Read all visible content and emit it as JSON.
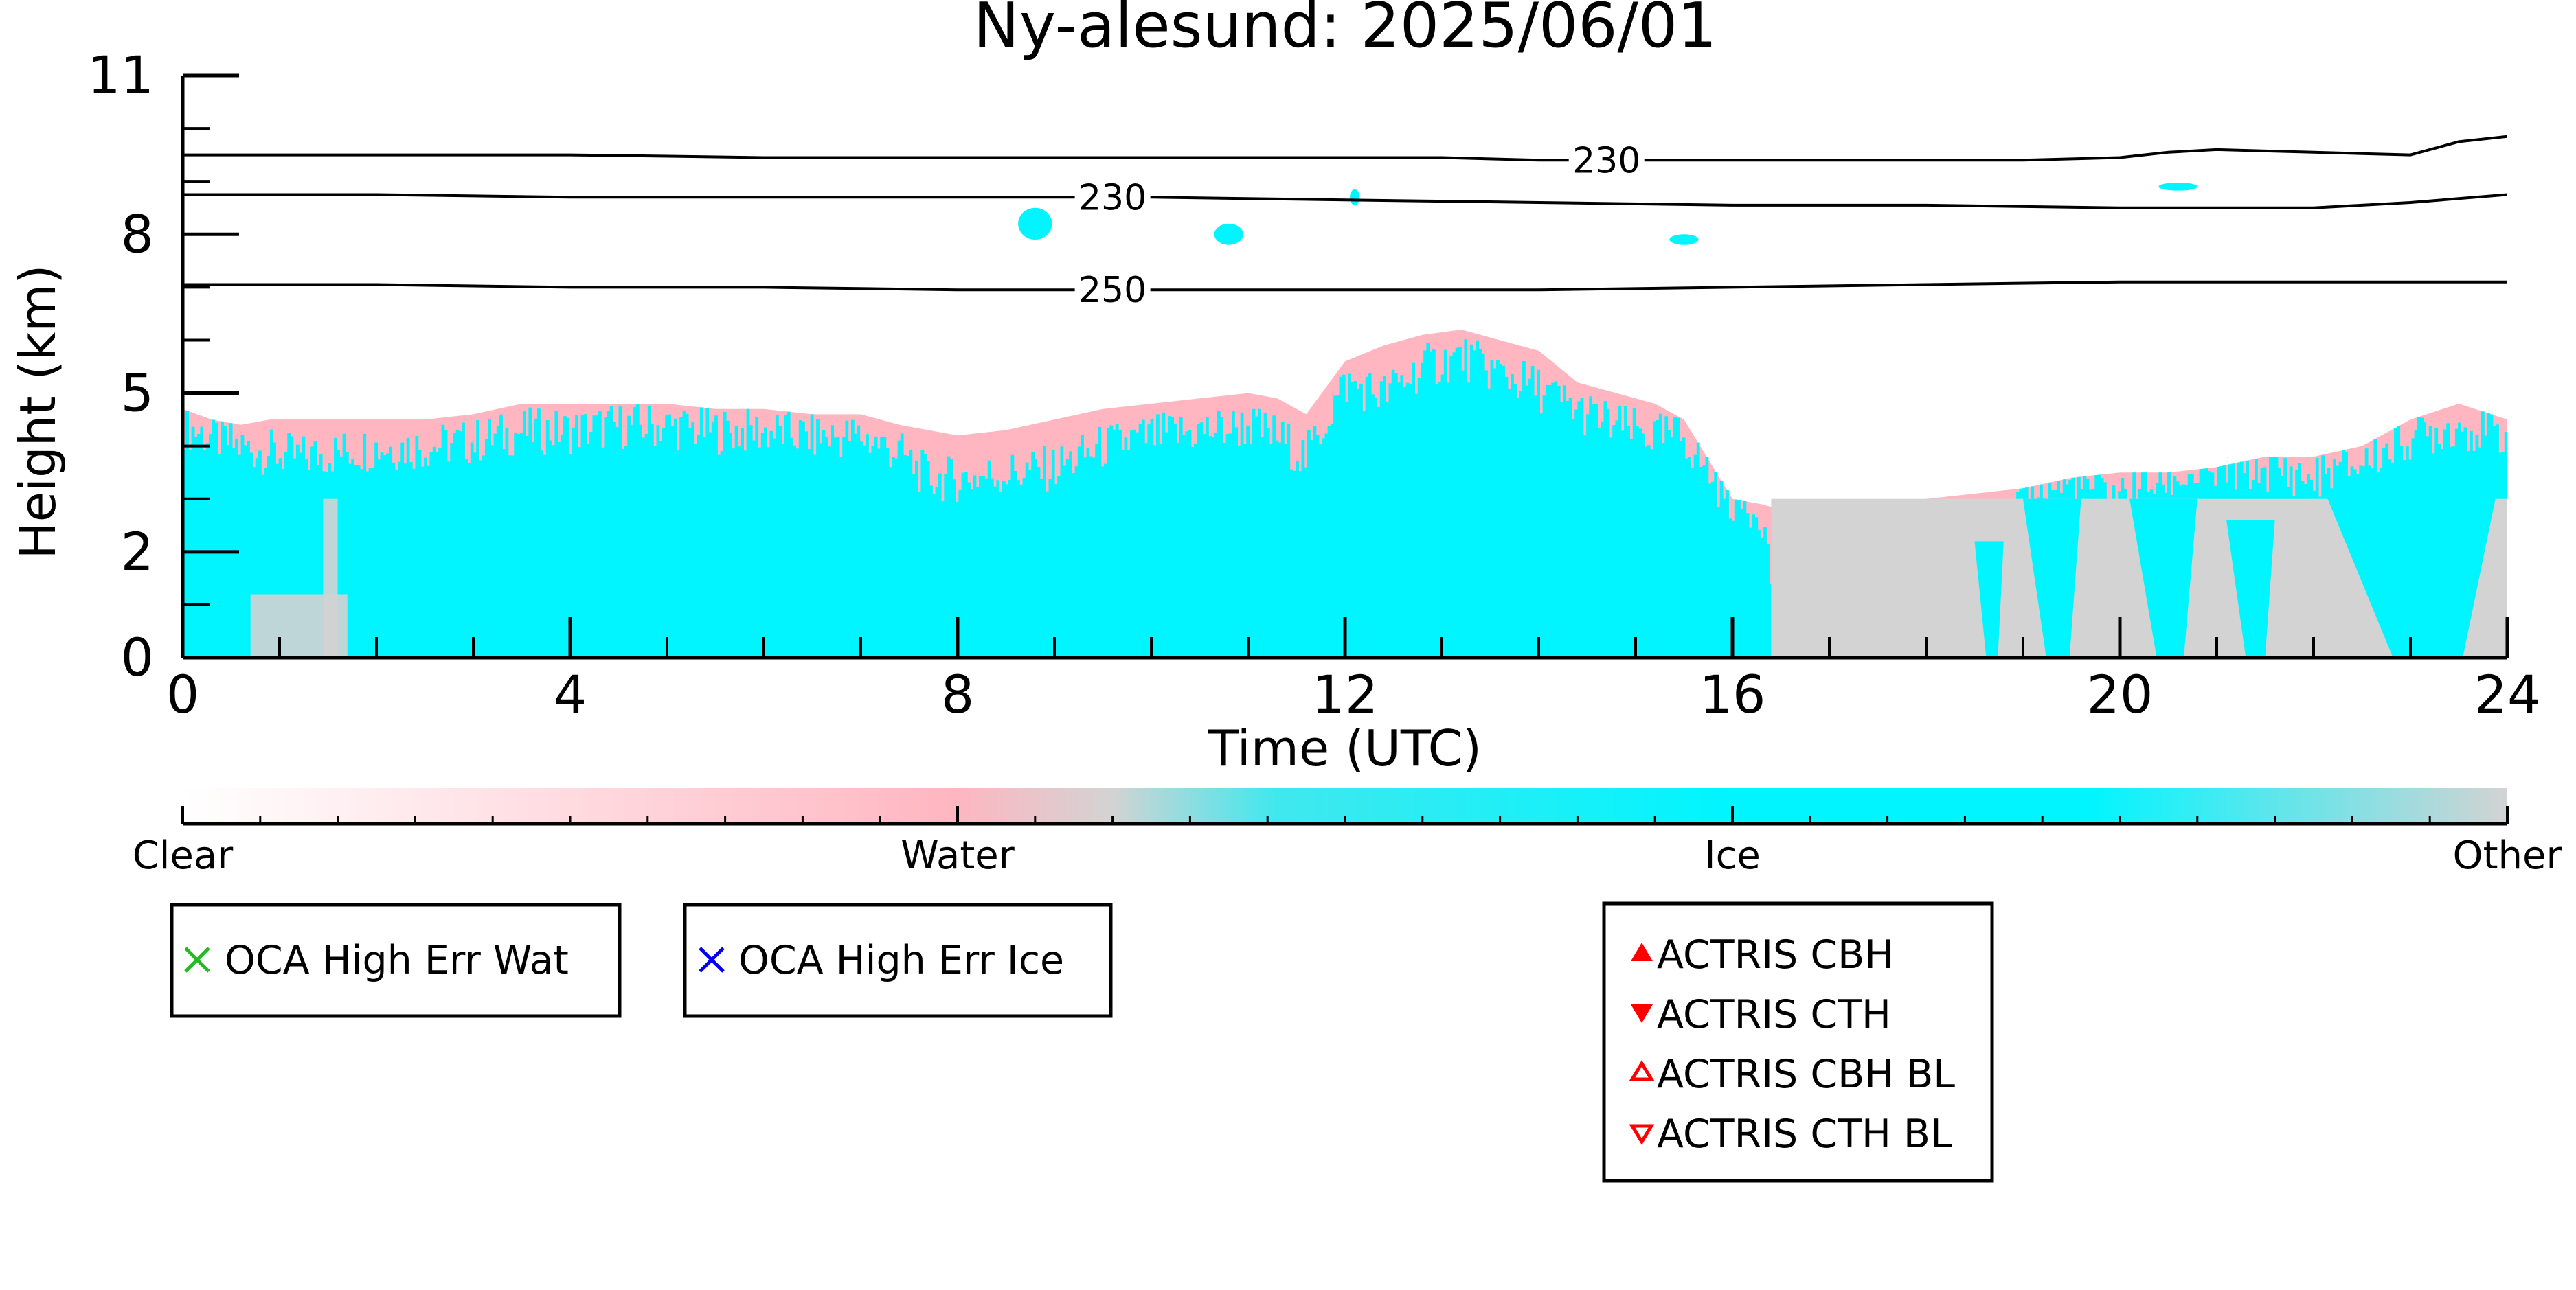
{
  "chart_data": {
    "type": "heatmap",
    "title": "Ny-alesund: 2025/06/01",
    "xlabel": "Time (UTC)",
    "ylabel": "Height (km)",
    "xlim": [
      0,
      24
    ],
    "ylim": [
      0,
      11
    ],
    "x_ticks": [
      "0",
      "4",
      "8",
      "12",
      "16",
      "20",
      "24"
    ],
    "x_tick_values": [
      0,
      4,
      8,
      12,
      16,
      20,
      24
    ],
    "y_ticks": [
      "0",
      "2",
      "5",
      "8",
      "11"
    ],
    "y_tick_values": [
      0,
      2,
      5,
      8,
      11
    ],
    "x_minor_step": 1,
    "y_minor_step": 1,
    "categories": [
      "Clear",
      "Water",
      "Ice",
      "Other"
    ],
    "colors": {
      "Clear": "#ffffff",
      "Water": "#ffb6c1",
      "Ice": "#00f5ff",
      "Other": "#d3d3d3"
    },
    "colorbar_stops": [
      {
        "pos": 0.0,
        "color": "#ffffff"
      },
      {
        "pos": 0.333,
        "color": "#ffb6c1"
      },
      {
        "pos": 0.4,
        "color": "#d3d3d3"
      },
      {
        "pos": 0.47,
        "color": "#40e8ee"
      },
      {
        "pos": 0.667,
        "color": "#00f5ff"
      },
      {
        "pos": 0.82,
        "color": "#00f5ff"
      },
      {
        "pos": 1.0,
        "color": "#d3d3d3"
      }
    ],
    "ice_profile": {
      "time": [
        0,
        0.3,
        0.6,
        0.9,
        1.2,
        1.6,
        2,
        2.5,
        3,
        3.5,
        4,
        4.5,
        5,
        5.5,
        6,
        6.5,
        7,
        7.4,
        7.7,
        8,
        8.5,
        9,
        9.5,
        10,
        10.5,
        11,
        11.3,
        11.6,
        12,
        12.4,
        12.8,
        13.2,
        13.6,
        14,
        14.4,
        14.8,
        15.2,
        15.5,
        15.8,
        16,
        16.3,
        16.5,
        17,
        17.5,
        18,
        18.5,
        19,
        19.5,
        20,
        20.5,
        21,
        21.5,
        22,
        22.5,
        23,
        23.5,
        24
      ],
      "cloud_base": [
        0,
        0,
        0,
        0,
        0,
        0,
        0,
        0,
        0,
        0,
        0,
        0,
        0,
        0,
        0,
        0,
        0,
        0,
        0,
        0,
        0,
        0,
        0,
        0,
        0,
        0,
        0,
        0,
        0,
        0,
        0,
        0,
        0,
        0,
        0,
        0,
        0,
        0,
        0,
        0,
        0,
        0,
        0,
        0,
        0,
        0,
        0,
        0,
        0,
        0,
        0,
        0,
        0,
        0,
        0,
        0,
        0
      ],
      "ice_top": [
        4.2,
        4.0,
        3.8,
        3.7,
        3.6,
        3.7,
        3.8,
        3.8,
        3.9,
        4.1,
        4.1,
        4.2,
        4.2,
        4.1,
        4.1,
        4.0,
        4.0,
        3.7,
        3.2,
        3.2,
        3.3,
        3.4,
        3.8,
        4.0,
        4.1,
        4.2,
        4.0,
        3.6,
        5.0,
        4.8,
        5.3,
        5.5,
        5.2,
        4.9,
        4.5,
        4.2,
        4.0,
        4.0,
        3.2,
        2.8,
        2.6,
        0.0,
        0.0,
        0.0,
        0.0,
        0.0,
        3.0,
        3.1,
        2.9,
        3.2,
        3.3,
        3.4,
        3.2,
        3.5,
        4.0,
        4.2,
        4.0
      ],
      "water_top": [
        4.7,
        4.5,
        4.4,
        4.5,
        4.5,
        4.5,
        4.5,
        4.5,
        4.6,
        4.8,
        4.8,
        4.8,
        4.8,
        4.7,
        4.7,
        4.6,
        4.6,
        4.4,
        4.3,
        4.2,
        4.3,
        4.5,
        4.7,
        4.8,
        4.9,
        5.0,
        4.9,
        4.6,
        5.6,
        5.9,
        6.1,
        6.2,
        6.0,
        5.8,
        5.2,
        5.0,
        4.8,
        4.5,
        3.6,
        3.0,
        2.9,
        2.8,
        2.8,
        2.9,
        3.0,
        3.1,
        3.2,
        3.4,
        3.5,
        3.5,
        3.6,
        3.8,
        3.8,
        4.0,
        4.5,
        4.8,
        4.5
      ]
    },
    "other_region": {
      "time_start": 16.4,
      "time_end": 24.0,
      "top": 3.0
    },
    "gaps": [
      {
        "t0": 0.7,
        "t1": 1.7,
        "h_top": 1.2
      },
      {
        "t0": 1.45,
        "t1": 1.6,
        "h_top": 3.0
      }
    ],
    "contours": [
      {
        "label": "230",
        "label_time": 14.7,
        "time": [
          0,
          2,
          4,
          6,
          8,
          10,
          12,
          13,
          14,
          15,
          16,
          17,
          18,
          19,
          20,
          20.5,
          21,
          22,
          23,
          23.5,
          24
        ],
        "height": [
          9.5,
          9.5,
          9.5,
          9.45,
          9.45,
          9.45,
          9.45,
          9.45,
          9.4,
          9.4,
          9.4,
          9.4,
          9.4,
          9.4,
          9.45,
          9.55,
          9.6,
          9.55,
          9.5,
          9.75,
          9.85
        ]
      },
      {
        "label": "230",
        "label_time": 9.6,
        "time": [
          0,
          2,
          4,
          6,
          8,
          10,
          12,
          14,
          16,
          18,
          20,
          22,
          23,
          24
        ],
        "height": [
          8.75,
          8.75,
          8.7,
          8.7,
          8.7,
          8.7,
          8.65,
          8.6,
          8.55,
          8.55,
          8.5,
          8.5,
          8.6,
          8.75
        ]
      },
      {
        "label": "250",
        "label_time": 9.6,
        "time": [
          0,
          2,
          4,
          6,
          8,
          10,
          12,
          14,
          16,
          18,
          20,
          22,
          24
        ],
        "height": [
          7.05,
          7.05,
          7.0,
          7.0,
          6.95,
          6.95,
          6.95,
          6.95,
          7.0,
          7.05,
          7.1,
          7.1,
          7.1
        ]
      }
    ],
    "ice_patches": [
      {
        "t": 8.8,
        "h": 8.2,
        "w": 0.35,
        "hh": 0.6
      },
      {
        "t": 10.8,
        "h": 8.0,
        "w": 0.3,
        "hh": 0.4
      },
      {
        "t": 12.1,
        "h": 8.7,
        "w": 0.1,
        "hh": 0.3
      },
      {
        "t": 15.5,
        "h": 7.9,
        "w": 0.3,
        "hh": 0.2
      },
      {
        "t": 20.6,
        "h": 8.9,
        "w": 0.4,
        "hh": 0.15
      }
    ],
    "legends": {
      "oca_water": "OCA High Err Wat",
      "oca_ice": "OCA High Err Ice",
      "actris": [
        "ACTRIS CBH",
        "ACTRIS CTH",
        "ACTRIS CBH BL",
        "ACTRIS CTH BL"
      ]
    },
    "marker_colors": {
      "oca_water": "#22bb22",
      "oca_ice": "#0000ee",
      "actris": "#ff0000"
    }
  }
}
